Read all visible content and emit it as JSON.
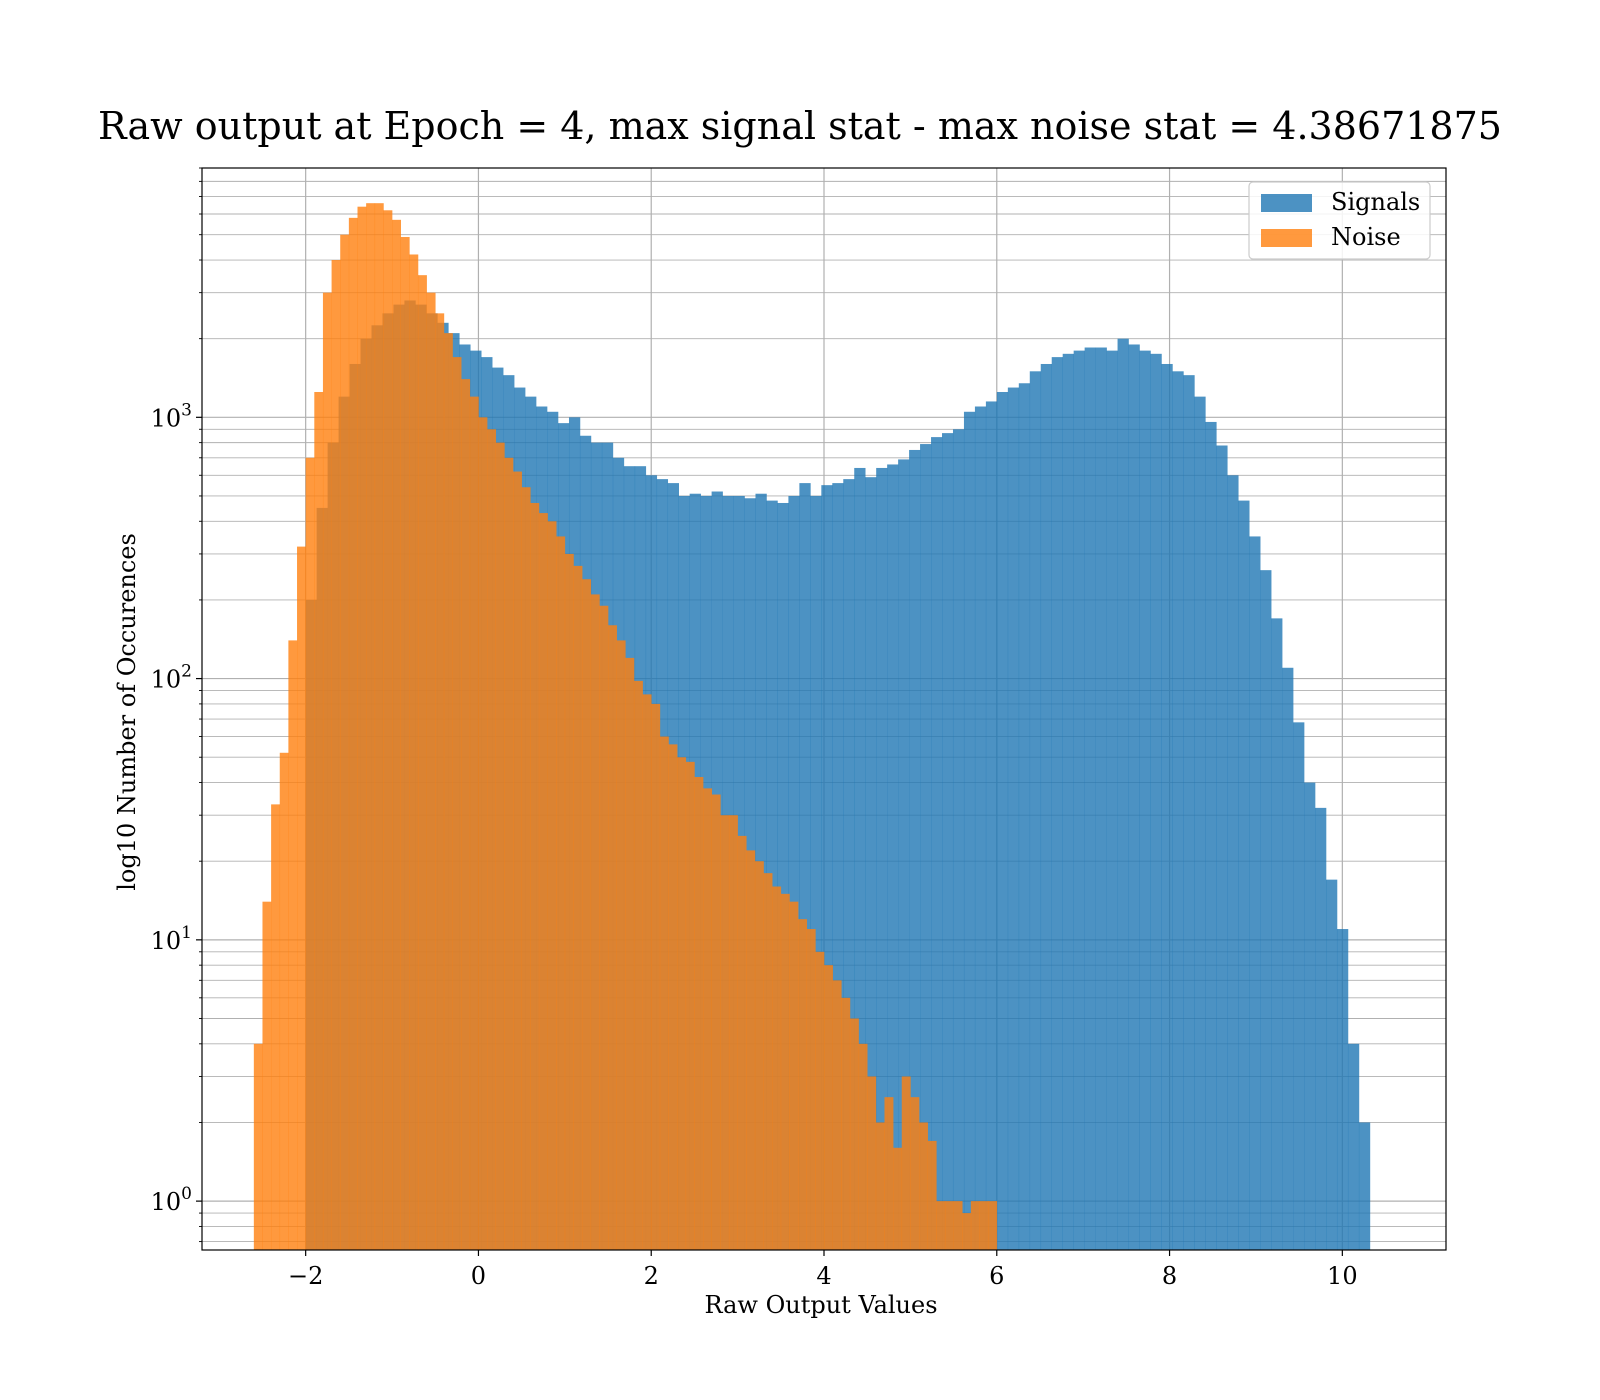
{
  "chart_data": {
    "type": "bar",
    "title": "Raw output at Epoch = 4, max signal stat - max noise stat = 4.38671875",
    "xlabel": "Raw Output Values",
    "ylabel": "log10 Number of Occurences",
    "xlim": [
      -3.2,
      11.2
    ],
    "ylim": [
      0.65,
      9000
    ],
    "yscale": "log",
    "grid": true,
    "grid_minor": true,
    "legend": "top-right",
    "x_ticks": [
      {
        "value": -2,
        "label": "−2"
      },
      {
        "value": 0,
        "label": "0"
      },
      {
        "value": 2,
        "label": "2"
      },
      {
        "value": 4,
        "label": "4"
      },
      {
        "value": 6,
        "label": "6"
      },
      {
        "value": 8,
        "label": "8"
      },
      {
        "value": 10,
        "label": "10"
      }
    ],
    "y_ticks": [
      {
        "value": 1,
        "base": "10",
        "exp": "0"
      },
      {
        "value": 10,
        "base": "10",
        "exp": "1"
      },
      {
        "value": 100,
        "base": "10",
        "exp": "2"
      },
      {
        "value": 1000,
        "base": "10",
        "exp": "3"
      }
    ],
    "series": [
      {
        "name": "Signals",
        "color": "#1f77b4",
        "alpha": 0.8,
        "bin_start": -2.0,
        "bin_width": 0.127,
        "values": [
          200,
          450,
          800,
          1200,
          1600,
          2000,
          2250,
          2500,
          2700,
          2800,
          2700,
          2500,
          2300,
          2100,
          1900,
          1800,
          1700,
          1550,
          1450,
          1300,
          1200,
          1100,
          1050,
          950,
          1000,
          850,
          800,
          800,
          700,
          650,
          650,
          600,
          580,
          560,
          500,
          510,
          500,
          520,
          500,
          500,
          490,
          510,
          480,
          470,
          500,
          560,
          500,
          550,
          560,
          580,
          640,
          590,
          640,
          660,
          690,
          750,
          790,
          840,
          870,
          900,
          1050,
          1100,
          1150,
          1250,
          1300,
          1350,
          1500,
          1600,
          1700,
          1750,
          1800,
          1850,
          1850,
          1800,
          2000,
          1900,
          1800,
          1750,
          1600,
          1500,
          1450,
          1200,
          960,
          780,
          600,
          480,
          350,
          260,
          170,
          110,
          68,
          40,
          32,
          17,
          11,
          4,
          2
        ]
      },
      {
        "name": "Noise",
        "color": "#ff7f0e",
        "alpha": 0.8,
        "bin_start": -2.6,
        "bin_width": 0.1,
        "values": [
          4,
          14,
          33,
          52,
          140,
          320,
          700,
          1250,
          3000,
          4000,
          5000,
          5800,
          6400,
          6600,
          6600,
          6200,
          5700,
          4900,
          4200,
          3500,
          3000,
          2500,
          2100,
          1700,
          1400,
          1200,
          1000,
          900,
          800,
          700,
          620,
          540,
          470,
          430,
          400,
          350,
          300,
          270,
          240,
          210,
          190,
          160,
          140,
          120,
          98,
          87,
          80,
          60,
          56,
          50,
          48,
          42,
          38,
          36,
          30,
          30,
          25,
          22,
          20,
          18,
          16,
          15,
          14,
          12,
          11,
          9,
          8,
          7,
          6,
          5,
          4,
          3,
          2,
          2.5,
          1.6,
          3,
          2.5,
          2,
          1.7,
          1,
          1,
          1,
          0.9,
          1,
          1,
          1
        ]
      }
    ]
  }
}
